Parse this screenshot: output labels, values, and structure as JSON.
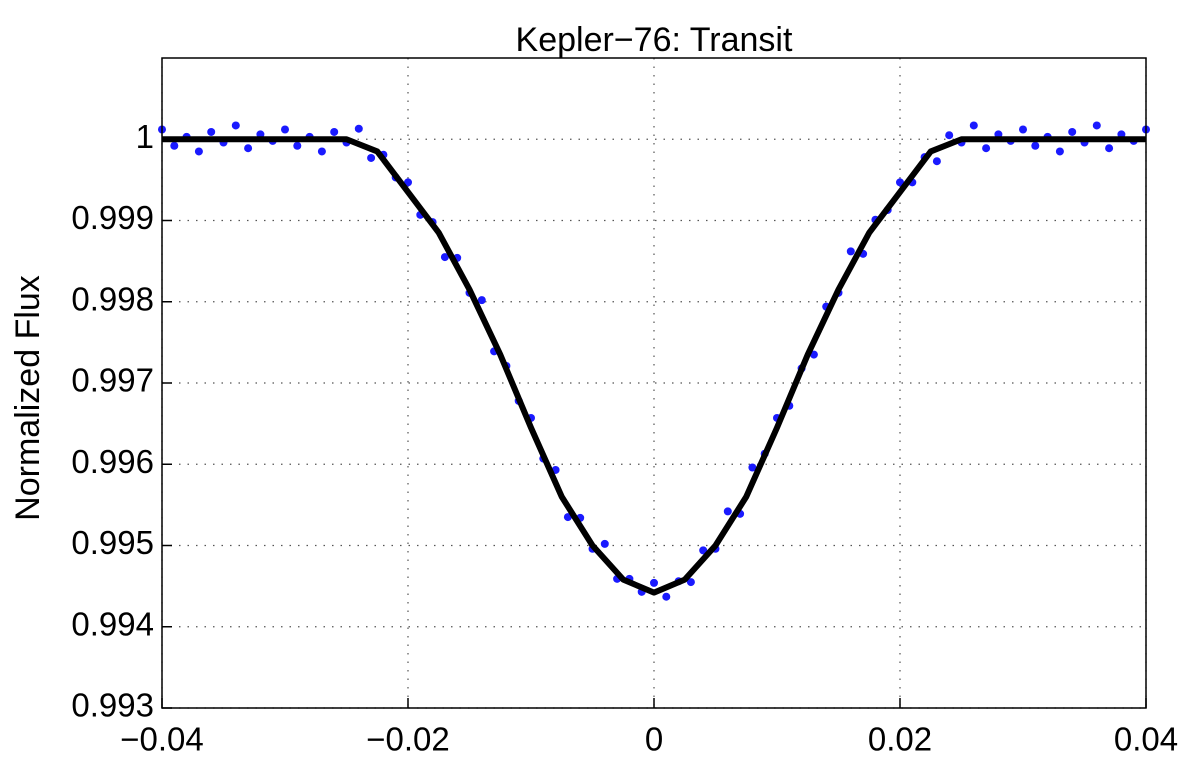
{
  "chart_data": {
    "type": "scatter",
    "title": "Kepler−76: Transit",
    "y_label": "Normalized Flux",
    "xlim": [
      -0.04,
      0.04
    ],
    "ylim": [
      0.993,
      1.001
    ],
    "xticks": [
      {
        "value": -0.04,
        "label": "−0.04"
      },
      {
        "value": -0.02,
        "label": "−0.02"
      },
      0,
      0.02,
      0.04
    ],
    "yticks": [
      0.993,
      0.994,
      0.995,
      0.996,
      0.997,
      0.998,
      0.999,
      1
    ],
    "grid": true,
    "series": [
      {
        "type": "scatter",
        "color": "#1a1aff",
        "x": [
          -0.04,
          -0.039,
          -0.038,
          -0.037,
          -0.036,
          -0.035,
          -0.034,
          -0.033,
          -0.032,
          -0.031,
          -0.03,
          -0.029,
          -0.028,
          -0.027,
          -0.026,
          -0.025,
          -0.024,
          -0.023,
          -0.022,
          -0.021,
          -0.02,
          -0.019,
          -0.018,
          -0.017,
          -0.016,
          -0.015,
          -0.014,
          -0.013,
          -0.012,
          -0.011,
          -0.01,
          -0.009,
          -0.008,
          -0.007,
          -0.006,
          -0.005,
          -0.004,
          -0.003,
          -0.002,
          -0.001,
          0,
          0.001,
          0.002,
          0.003,
          0.004,
          0.005,
          0.006,
          0.007,
          0.008,
          0.009,
          0.01,
          0.011,
          0.012,
          0.013,
          0.014,
          0.015,
          0.016,
          0.017,
          0.018,
          0.019,
          0.02,
          0.021,
          0.022,
          0.023,
          0.024,
          0.025,
          0.026,
          0.027,
          0.028,
          0.029,
          0.03,
          0.031,
          0.032,
          0.033,
          0.034,
          0.035,
          0.036,
          0.037,
          0.038,
          0.039,
          0.04
        ],
        "values": [
          1.00012,
          0.99992,
          1.00003,
          0.99985,
          1.00009,
          0.99996,
          1.00017,
          0.99989,
          1.00006,
          0.99998,
          1.00012,
          0.99992,
          1.00003,
          0.99985,
          1.00009,
          0.99996,
          1.00013,
          0.99977,
          0.99981,
          0.99953,
          0.99947,
          0.99907,
          0.99898,
          0.99855,
          0.99854,
          0.99811,
          0.99802,
          0.99739,
          0.99721,
          0.99678,
          0.99657,
          0.99607,
          0.99593,
          0.99535,
          0.99534,
          0.99496,
          0.99502,
          0.99459,
          0.99459,
          0.99443,
          0.99454,
          0.99437,
          0.99456,
          0.99455,
          0.99494,
          0.99496,
          0.99542,
          0.99539,
          0.99596,
          0.99613,
          0.99657,
          0.99672,
          0.99718,
          0.99735,
          0.99794,
          0.99811,
          0.99862,
          0.99859,
          0.99901,
          0.99913,
          0.99947,
          0.99947,
          0.99978,
          0.99973,
          1.00005,
          0.99996,
          1.00017,
          0.99989,
          1.00006,
          0.99998,
          1.00012,
          0.99992,
          1.00003,
          0.99985,
          1.00009,
          0.99996,
          1.00017,
          0.99989,
          1.00006,
          0.99998,
          1.00012
        ]
      },
      {
        "type": "line",
        "color": "#000000",
        "x": [
          -0.04,
          -0.0375,
          -0.035,
          -0.0325,
          -0.03,
          -0.0275,
          -0.025,
          -0.0225,
          -0.02,
          -0.0175,
          -0.015,
          -0.0125,
          -0.01,
          -0.0075,
          -0.005,
          -0.0025,
          0,
          0.0025,
          0.005,
          0.0075,
          0.01,
          0.0125,
          0.015,
          0.0175,
          0.02,
          0.0225,
          0.025,
          0.0275,
          0.03,
          0.0325,
          0.035,
          0.0375,
          0.04
        ],
        "values": [
          1,
          1,
          1,
          1,
          1,
          1,
          1,
          0.99985,
          0.99935,
          0.99885,
          0.99815,
          0.99735,
          0.99645,
          0.9956,
          0.995,
          0.99458,
          0.99442,
          0.99458,
          0.995,
          0.9956,
          0.99645,
          0.99735,
          0.99815,
          0.99885,
          0.99935,
          0.99985,
          1,
          1,
          1,
          1,
          1,
          1,
          1
        ]
      }
    ]
  }
}
